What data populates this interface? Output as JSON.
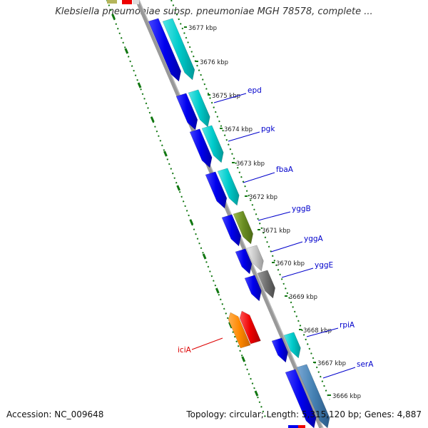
{
  "title": "Klebsiella pneumoniae subsp. pneumoniae MGH 78578, complete ...",
  "accession_text": "Accession: NC_009648",
  "summary_text": "Topology: circular; Length: 5,315,120 bp; Genes: 4,887",
  "colors": {
    "forward_gene": "#0000ee",
    "cds_cyan": "#00cccc",
    "reverse_gene": "#ee0000",
    "reverse_cds": "#ff8800",
    "gene_label": "#0000cc",
    "reverse_label": "#dd0000",
    "backbone": "#888888",
    "ticks": "#117711",
    "olive_cds": "#6b8e23",
    "lightgray_cds": "#c8c8c8",
    "darkgray_cds": "#707070",
    "steel_cds": "#4682b4"
  },
  "kbp_ticks": [
    "3677 kbp",
    "3676 kbp",
    "3675 kbp",
    "3674 kbp",
    "3673 kbp",
    "3672 kbp",
    "3671 kbp",
    "3670 kbp",
    "3669 kbp",
    "3668 kbp",
    "3667 kbp",
    "3666 kbp"
  ],
  "genes": [
    {
      "name": "epd",
      "strand": "forward"
    },
    {
      "name": "pgk",
      "strand": "forward"
    },
    {
      "name": "fbaA",
      "strand": "forward"
    },
    {
      "name": "yggB",
      "strand": "forward"
    },
    {
      "name": "yggA",
      "strand": "forward"
    },
    {
      "name": "yggE",
      "strand": "forward"
    },
    {
      "name": "rpiA",
      "strand": "forward"
    },
    {
      "name": "serA",
      "strand": "forward"
    },
    {
      "name": "iciA",
      "strand": "reverse"
    }
  ]
}
